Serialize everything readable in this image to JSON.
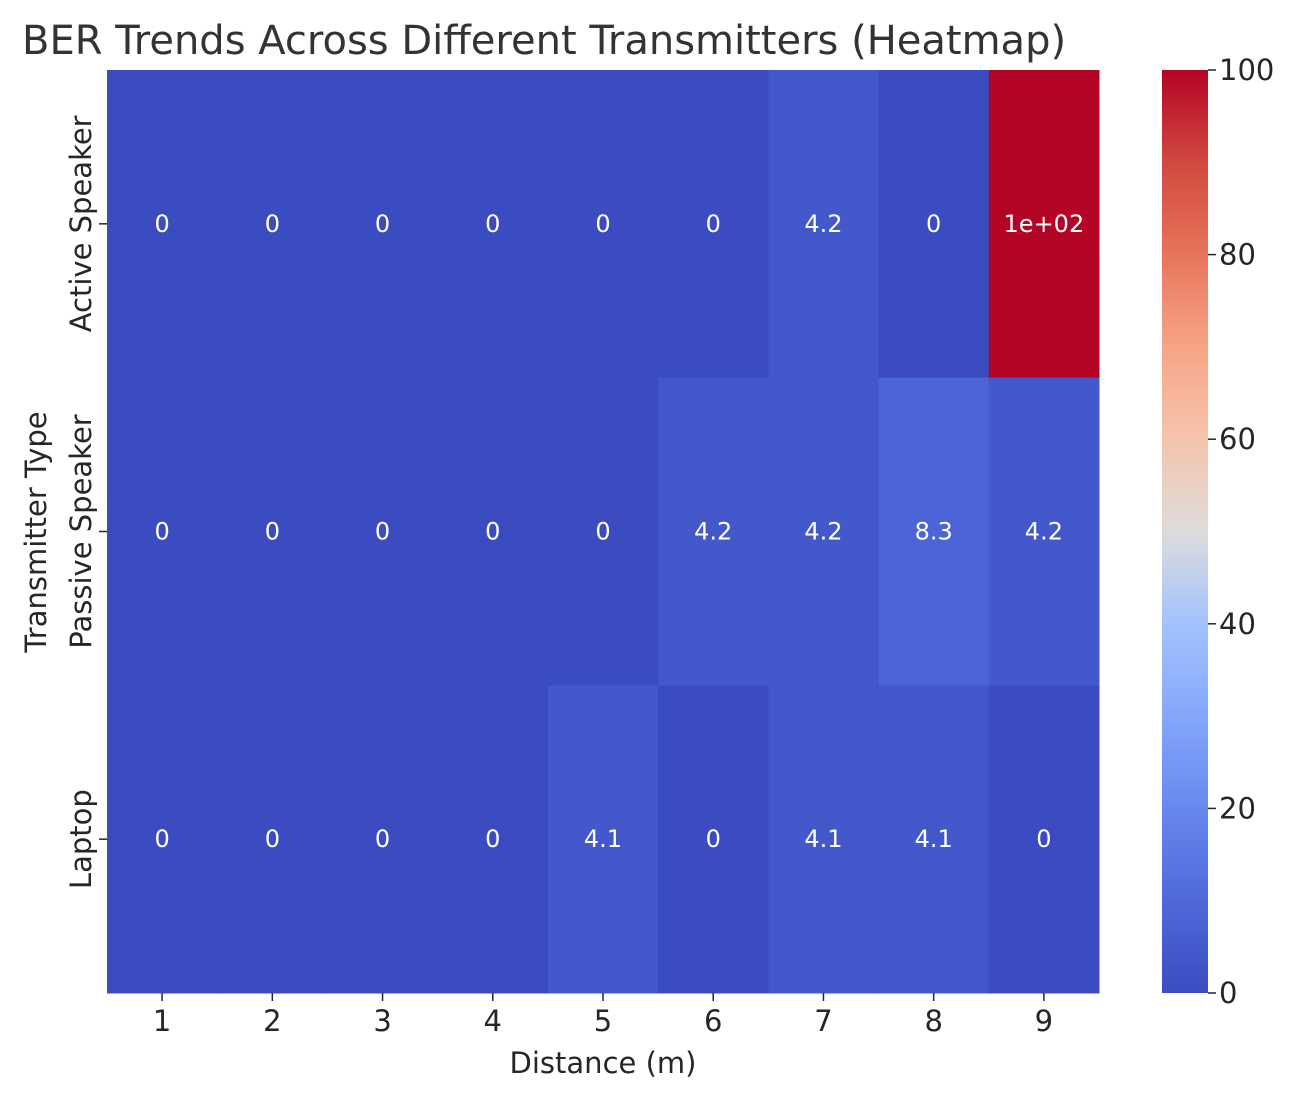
{
  "chart_data": {
    "type": "heatmap",
    "title": "BER Trends Across Different Transmitters (Heatmap)",
    "xlabel": "Distance (m)",
    "ylabel": "Transmitter Type",
    "x_categories": [
      "1",
      "2",
      "3",
      "4",
      "5",
      "6",
      "7",
      "8",
      "9"
    ],
    "y_categories": [
      "Active Speaker",
      "Passive Speaker",
      "Laptop"
    ],
    "values": [
      [
        0,
        0,
        0,
        0,
        0,
        0,
        4.2,
        0,
        100
      ],
      [
        0,
        0,
        0,
        0,
        0,
        4.2,
        4.2,
        8.3,
        4.2
      ],
      [
        0,
        0,
        0,
        0,
        4.1,
        0,
        4.1,
        4.1,
        0
      ]
    ],
    "cell_labels": [
      [
        "0",
        "0",
        "0",
        "0",
        "0",
        "0",
        "4.2",
        "0",
        "1e+02"
      ],
      [
        "0",
        "0",
        "0",
        "0",
        "0",
        "4.2",
        "4.2",
        "8.3",
        "4.2"
      ],
      [
        "0",
        "0",
        "0",
        "0",
        "4.1",
        "0",
        "4.1",
        "4.1",
        "0"
      ]
    ],
    "colormap": "coolwarm",
    "colorbar": {
      "range": [
        0,
        100
      ],
      "ticks": [
        0,
        20,
        40,
        60,
        80,
        100
      ]
    }
  }
}
